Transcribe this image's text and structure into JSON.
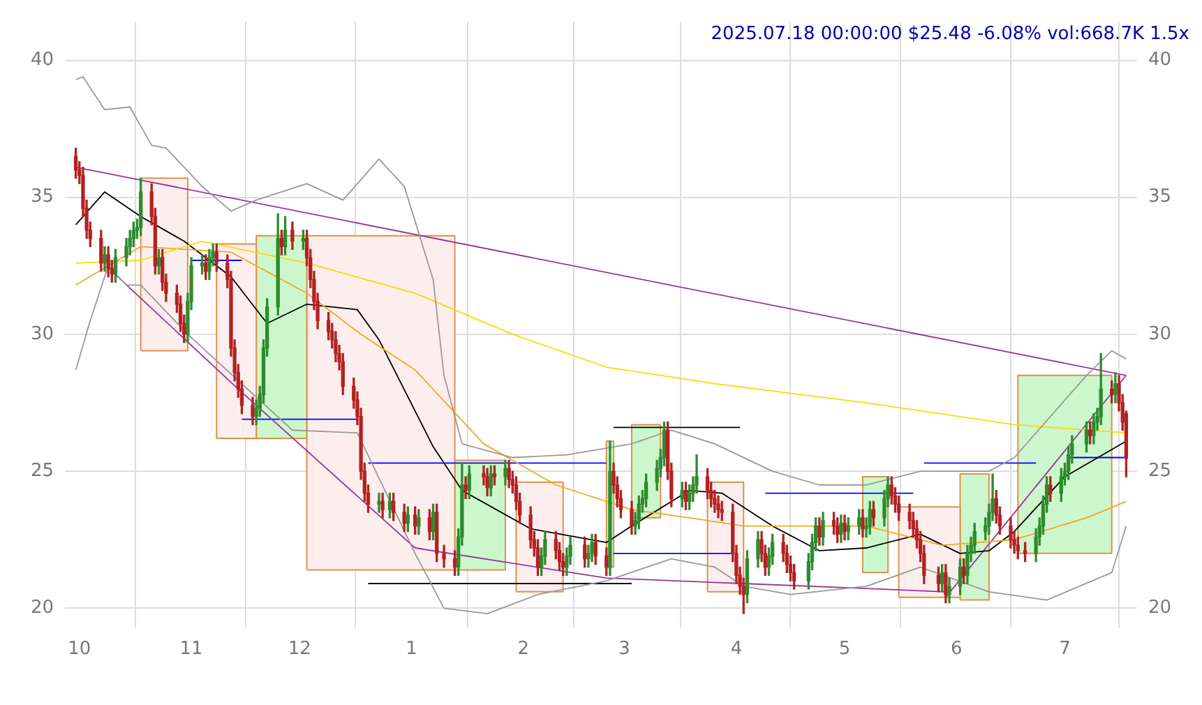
{
  "chart_data": {
    "type": "candlestick",
    "title": "2025.07.18 00:00:00 $25.48 -6.08% vol:668.7K 1.5x",
    "xlim": [
      "2024-09-27",
      "2025-07-21"
    ],
    "xticks": [
      {
        "value": "2024-10-01",
        "label": "10"
      },
      {
        "value": "2024-11-01",
        "label": "11"
      },
      {
        "value": "2024-12-01",
        "label": "12"
      },
      {
        "value": "2025-01-01",
        "label": "1"
      },
      {
        "value": "2025-02-01",
        "label": "2"
      },
      {
        "value": "2025-03-01",
        "label": "3"
      },
      {
        "value": "2025-04-01",
        "label": "4"
      },
      {
        "value": "2025-05-01",
        "label": "5"
      },
      {
        "value": "2025-06-01",
        "label": "6"
      },
      {
        "value": "2025-07-01",
        "label": "7"
      }
    ],
    "ylim": [
      19.3,
      41.4
    ],
    "yticks": [
      20,
      25,
      30,
      35,
      40
    ],
    "y2lim": [
      19.3,
      41.4
    ],
    "y2ticks": [
      20,
      25,
      30,
      35,
      40
    ],
    "grid": true,
    "legend": false,
    "marker": "none",
    "line_style": "solid",
    "series": [
      {
        "type": "area",
        "color": "#fdeeee",
        "x": [
          "2024-10-18",
          "2024-10-18",
          "2024-10-31",
          "2024-10-31",
          "2024-10-18"
        ],
        "values": [
          29.4,
          35.7,
          35.7,
          29.4,
          29.4
        ]
      },
      {
        "type": "area",
        "color": "#fdeeee",
        "x": [
          "2024-11-08",
          "2024-11-08",
          "2024-11-19",
          "2024-11-19",
          "2024-11-08"
        ],
        "values": [
          26.2,
          33.3,
          33.3,
          26.2,
          26.2
        ]
      },
      {
        "type": "area",
        "color": "#ccf7cc",
        "x": [
          "2024-11-19",
          "2024-11-19",
          "2024-12-03",
          "2024-12-03",
          "2024-11-19"
        ],
        "values": [
          26.2,
          33.6,
          33.6,
          26.2,
          26.2
        ]
      },
      {
        "type": "area",
        "color": "#fdeeee",
        "x": [
          "2024-12-03",
          "2024-12-03",
          "2025-01-13",
          "2025-01-13",
          "2024-12-03"
        ],
        "values": [
          21.4,
          33.6,
          33.6,
          21.4,
          21.4
        ]
      },
      {
        "type": "area",
        "color": "#ccf7cc",
        "x": [
          "2025-01-13",
          "2025-01-13",
          "2025-01-27",
          "2025-01-27",
          "2025-01-13"
        ],
        "values": [
          21.4,
          25.4,
          25.4,
          21.4,
          21.4
        ]
      },
      {
        "type": "area",
        "color": "#fdeeee",
        "x": [
          "2025-01-30",
          "2025-01-30",
          "2025-02-12",
          "2025-02-12",
          "2025-01-30"
        ],
        "values": [
          20.6,
          24.6,
          24.6,
          20.6,
          20.6
        ]
      },
      {
        "type": "area",
        "color": "#ccf7cc",
        "x": [
          "2025-02-24",
          "2025-02-24",
          "2025-02-26",
          "2025-02-26",
          "2025-02-24"
        ],
        "values": [
          21.5,
          26.1,
          26.1,
          21.5,
          21.5
        ]
      },
      {
        "type": "area",
        "color": "#ccf7cc",
        "x": [
          "2025-03-03",
          "2025-03-03",
          "2025-03-11",
          "2025-03-11",
          "2025-03-03"
        ],
        "values": [
          23.3,
          26.7,
          26.7,
          23.3,
          23.3
        ]
      },
      {
        "type": "area",
        "color": "#fdeeee",
        "x": [
          "2025-03-24",
          "2025-03-24",
          "2025-04-03",
          "2025-04-03",
          "2025-03-24"
        ],
        "values": [
          20.6,
          24.6,
          24.6,
          20.6,
          20.6
        ]
      },
      {
        "type": "area",
        "color": "#ccf7cc",
        "x": [
          "2025-05-06",
          "2025-05-06",
          "2025-05-13",
          "2025-05-13",
          "2025-05-06"
        ],
        "values": [
          21.3,
          24.8,
          24.8,
          21.3,
          21.3
        ]
      },
      {
        "type": "area",
        "color": "#fdeeee",
        "x": [
          "2025-05-16",
          "2025-05-16",
          "2025-06-02",
          "2025-06-02",
          "2025-05-16"
        ],
        "values": [
          20.4,
          23.7,
          23.7,
          20.4,
          20.4
        ]
      },
      {
        "type": "area",
        "color": "#ccf7cc",
        "x": [
          "2025-06-02",
          "2025-06-02",
          "2025-06-10",
          "2025-06-10",
          "2025-06-02"
        ],
        "values": [
          20.3,
          24.9,
          24.9,
          20.3,
          20.3
        ]
      },
      {
        "type": "area",
        "color": "#ccf7cc",
        "x": [
          "2025-06-18",
          "2025-06-18",
          "2025-07-14",
          "2025-07-14",
          "2025-06-18"
        ],
        "values": [
          22.0,
          28.5,
          28.5,
          22.0,
          22.0
        ]
      },
      {
        "type": "line",
        "color": "#999999",
        "x": [
          "2024-09-30",
          "2024-10-02",
          "2024-10-08",
          "2024-10-15",
          "2024-10-21",
          "2024-10-25",
          "2024-11-04",
          "2024-11-12",
          "2024-11-19",
          "2024-12-03",
          "2024-12-13",
          "2024-12-23",
          "2024-12-30",
          "2025-01-07",
          "2025-01-10",
          "2025-01-15",
          "2025-01-29",
          "2025-02-13",
          "2025-03-03",
          "2025-03-14",
          "2025-03-26",
          "2025-04-11",
          "2025-04-24",
          "2025-05-07",
          "2025-05-22",
          "2025-06-10",
          "2025-06-17",
          "2025-07-07",
          "2025-07-14",
          "2025-07-18"
        ],
        "values": [
          39.3,
          39.4,
          38.2,
          38.3,
          36.9,
          36.8,
          35.4,
          34.5,
          34.9,
          35.5,
          34.9,
          36.4,
          35.4,
          32,
          28.5,
          26,
          25.5,
          25.6,
          26,
          26.5,
          26,
          25,
          24.5,
          24.5,
          25,
          25,
          25.5,
          28.5,
          29.4,
          29.1
        ]
      },
      {
        "type": "line",
        "color": "#999999",
        "x": [
          "2024-09-30",
          "2024-10-04",
          "2024-10-09",
          "2024-10-14",
          "2024-10-18",
          "2024-10-31",
          "2024-11-29",
          "2024-12-17",
          "2025-01-02",
          "2025-01-10",
          "2025-01-22",
          "2025-02-05",
          "2025-02-24",
          "2025-03-14",
          "2025-03-26",
          "2025-04-03",
          "2025-04-16",
          "2025-05-07",
          "2025-05-22",
          "2025-06-10",
          "2025-06-26",
          "2025-07-14",
          "2025-07-18"
        ],
        "values": [
          28.7,
          30.5,
          32.5,
          31.8,
          31.8,
          30,
          26.5,
          26.4,
          22,
          20.0,
          19.8,
          20.5,
          21,
          21.8,
          21.5,
          20.8,
          20.5,
          20.8,
          21.5,
          20.6,
          20.3,
          21.3,
          23.0
        ]
      },
      {
        "type": "line",
        "color": "#ffd700",
        "x": [
          "2024-09-30",
          "2024-10-18",
          "2024-11-04",
          "2024-12-03",
          "2025-01-02",
          "2025-01-29",
          "2025-02-24",
          "2025-03-26",
          "2025-05-07",
          "2025-06-17",
          "2025-07-18"
        ],
        "values": [
          32.6,
          32.7,
          33.4,
          32.6,
          31.5,
          30,
          28.8,
          28.2,
          27.5,
          26.7,
          26.4
        ]
      },
      {
        "type": "line",
        "color": "#f5a623",
        "x": [
          "2024-09-30",
          "2024-10-18",
          "2024-11-12",
          "2024-12-03",
          "2024-12-18",
          "2025-01-02",
          "2025-01-21",
          "2025-02-10",
          "2025-03-03",
          "2025-03-19",
          "2025-04-03",
          "2025-04-22",
          "2025-05-07",
          "2025-05-28",
          "2025-06-17",
          "2025-07-07",
          "2025-07-18"
        ],
        "values": [
          31.8,
          33.2,
          33.0,
          31.5,
          30,
          28.7,
          26,
          24.5,
          23.6,
          23.3,
          23.0,
          23.0,
          23.0,
          22.3,
          22.5,
          23.3,
          23.9
        ]
      },
      {
        "type": "line",
        "color": "#000000",
        "x": [
          "2024-09-30",
          "2024-10-08",
          "2024-10-18",
          "2024-10-30",
          "2024-11-12",
          "2024-11-22",
          "2024-12-03",
          "2024-12-17",
          "2024-12-23",
          "2025-01-07",
          "2025-01-15",
          "2025-02-03",
          "2025-02-24",
          "2025-03-03",
          "2025-03-19",
          "2025-03-28",
          "2025-04-11",
          "2025-04-24",
          "2025-05-07",
          "2025-05-22",
          "2025-06-02",
          "2025-06-10",
          "2025-06-17",
          "2025-07-01",
          "2025-07-18"
        ],
        "values": [
          34.0,
          35.2,
          34.3,
          33.4,
          32.1,
          30.4,
          31.1,
          30.9,
          29.8,
          25.9,
          24.3,
          22.9,
          22.4,
          23.0,
          24.3,
          24.2,
          23.0,
          22.1,
          22.2,
          22.7,
          22.0,
          22.1,
          22.8,
          24.8,
          26.1
        ]
      },
      {
        "type": "line",
        "color": "#993399",
        "x": [
          "2024-09-30",
          "2025-07-18"
        ],
        "values": [
          36.1,
          28.5
        ]
      },
      {
        "type": "line",
        "color": "#993399",
        "x": [
          "2024-10-10",
          "2024-11-14",
          "2025-01-02",
          "2025-02-24",
          "2025-04-03",
          "2025-05-29"
        ],
        "values": [
          32.3,
          28.0,
          22.2,
          21.1,
          20.9,
          20.6
        ]
      },
      {
        "type": "line",
        "color": "#993399",
        "x": [
          "2025-05-29",
          "2025-07-18"
        ],
        "values": [
          20.4,
          28.5
        ]
      },
      {
        "type": "line",
        "color": "#0000ff",
        "x": [
          "2024-11-01",
          "2024-11-15"
        ],
        "values": [
          32.7,
          32.7
        ]
      },
      {
        "type": "line",
        "color": "#0000ff",
        "x": [
          "2024-11-15",
          "2024-12-17"
        ],
        "values": [
          26.9,
          26.9
        ]
      },
      {
        "type": "line",
        "color": "#0000ff",
        "x": [
          "2024-12-20",
          "2025-02-24"
        ],
        "values": [
          25.3,
          25.3
        ]
      },
      {
        "type": "line",
        "color": "#000000",
        "x": [
          "2024-12-20",
          "2025-03-03"
        ],
        "values": [
          20.9,
          20.9
        ]
      },
      {
        "type": "line",
        "color": "#0000ff",
        "x": [
          "2025-02-26",
          "2025-03-31"
        ],
        "values": [
          22.0,
          22.0
        ]
      },
      {
        "type": "line",
        "color": "#000000",
        "x": [
          "2025-02-26",
          "2025-04-02"
        ],
        "values": [
          26.6,
          26.6
        ]
      },
      {
        "type": "line",
        "color": "#0000ff",
        "x": [
          "2025-04-09",
          "2025-05-20"
        ],
        "values": [
          24.2,
          24.2
        ]
      },
      {
        "type": "line",
        "color": "#0000ff",
        "x": [
          "2025-05-23",
          "2025-06-23"
        ],
        "values": [
          25.3,
          25.3
        ]
      },
      {
        "type": "line",
        "color": "#0000ff",
        "x": [
          "2025-07-02",
          "2025-07-18"
        ],
        "values": [
          25.5,
          25.5
        ]
      },
      {
        "color": "#b22222",
        "x": [
          "2024-09-30",
          "2024-10-01",
          "2024-10-02",
          "2024-10-03",
          "2024-10-04",
          "2024-10-07",
          "2024-10-09",
          "2024-10-10",
          "2024-10-21",
          "2024-10-22",
          "2024-10-24",
          "2024-10-25",
          "2024-10-28",
          "2024-10-29",
          "2024-10-30",
          "2024-11-05",
          "2024-11-08",
          "2024-11-11",
          "2024-11-12",
          "2024-11-13",
          "2024-11-14",
          "2024-11-15",
          "2024-11-18",
          "2024-11-26",
          "2024-11-29",
          "2024-12-03",
          "2024-12-04",
          "2024-12-05",
          "2024-12-06",
          "2024-12-09",
          "2024-12-10",
          "2024-12-11",
          "2024-12-12",
          "2024-12-13",
          "2024-12-16",
          "2024-12-17",
          "2024-12-18",
          "2024-12-19",
          "2024-12-20",
          "2024-12-24",
          "2024-12-27",
          "2024-12-30",
          "2025-01-02",
          "2025-01-06",
          "2025-01-08",
          "2025-01-10",
          "2025-01-13",
          "2025-01-16",
          "2025-01-21",
          "2025-01-22",
          "2025-01-24",
          "2025-01-28",
          "2025-01-29",
          "2025-01-30",
          "2025-01-31",
          "2025-02-03",
          "2025-02-04",
          "2025-02-05",
          "2025-02-10",
          "2025-02-11",
          "2025-02-12",
          "2025-02-18",
          "2025-02-21",
          "2025-02-24",
          "2025-02-26",
          "2025-02-27",
          "2025-02-28",
          "2025-03-03",
          "2025-03-13",
          "2025-03-14",
          "2025-03-18",
          "2025-03-24",
          "2025-03-25",
          "2025-03-26",
          "2025-03-27",
          "2025-03-28",
          "2025-03-31",
          "2025-04-01",
          "2025-04-02",
          "2025-04-03",
          "2025-04-08",
          "2025-04-09",
          "2025-04-14",
          "2025-04-15",
          "2025-04-16",
          "2025-04-17",
          "2025-04-24",
          "2025-04-28",
          "2025-04-29",
          "2025-05-01",
          "2025-05-06",
          "2025-05-09",
          "2025-05-14",
          "2025-05-15",
          "2025-05-16",
          "2025-05-19",
          "2025-05-20",
          "2025-05-21",
          "2025-05-22",
          "2025-05-23",
          "2025-05-27",
          "2025-05-29",
          "2025-06-03",
          "2025-06-12",
          "2025-06-13",
          "2025-06-16",
          "2025-06-17",
          "2025-06-18",
          "2025-06-20",
          "2025-06-27",
          "2025-07-08",
          "2025-07-14",
          "2025-07-16",
          "2025-07-17",
          "2025-07-18"
        ],
        "ohlc": [
          [
            36.5,
            36.8,
            35.7,
            36.0
          ],
          [
            36.0,
            36.3,
            35.5,
            35.8
          ],
          [
            35.8,
            36.1,
            34.3,
            34.6
          ],
          [
            34.6,
            34.9,
            33.5,
            33.8
          ],
          [
            33.8,
            34.1,
            33.2,
            33.5
          ],
          [
            33.5,
            33.8,
            32.3,
            32.6
          ],
          [
            32.9,
            33.2,
            32.1,
            32.4
          ],
          [
            32.4,
            32.7,
            31.9,
            32.2
          ],
          [
            35.2,
            35.5,
            34.0,
            34.3
          ],
          [
            34.3,
            34.6,
            32.2,
            32.5
          ],
          [
            32.8,
            33.1,
            31.6,
            31.9
          ],
          [
            31.9,
            32.2,
            31.2,
            31.5
          ],
          [
            31.5,
            31.8,
            30.8,
            31.1
          ],
          [
            31.1,
            31.4,
            30.1,
            30.4
          ],
          [
            30.4,
            30.7,
            29.7,
            30.0
          ],
          [
            32.6,
            32.9,
            32.0,
            32.3
          ],
          [
            33.0,
            33.3,
            32.3,
            32.6
          ],
          [
            32.6,
            32.9,
            31.7,
            32.0
          ],
          [
            32.0,
            32.3,
            29.2,
            29.5
          ],
          [
            29.5,
            29.8,
            28.3,
            28.6
          ],
          [
            28.6,
            28.9,
            27.7,
            28.0
          ],
          [
            28.0,
            28.3,
            27.1,
            27.4
          ],
          [
            27.4,
            27.7,
            26.7,
            27.0
          ],
          [
            33.5,
            33.8,
            32.9,
            33.2
          ],
          [
            33.8,
            34.1,
            33.1,
            33.4
          ],
          [
            33.5,
            33.8,
            32.5,
            32.8
          ],
          [
            32.8,
            33.1,
            31.7,
            32.0
          ],
          [
            32.0,
            32.3,
            30.9,
            31.2
          ],
          [
            31.2,
            31.5,
            30.2,
            30.5
          ],
          [
            30.5,
            30.8,
            29.8,
            30.1
          ],
          [
            30.1,
            30.4,
            29.5,
            29.8
          ],
          [
            29.8,
            30.1,
            29.0,
            29.3
          ],
          [
            29.3,
            29.6,
            28.7,
            29.0
          ],
          [
            29.0,
            29.3,
            27.8,
            28.1
          ],
          [
            28.1,
            28.4,
            27.3,
            27.6
          ],
          [
            27.6,
            27.9,
            26.7,
            27.0
          ],
          [
            27.0,
            27.3,
            24.7,
            25.0
          ],
          [
            25.0,
            25.3,
            23.9,
            24.2
          ],
          [
            24.2,
            24.5,
            23.5,
            23.8
          ],
          [
            23.9,
            24.2,
            23.3,
            23.6
          ],
          [
            23.9,
            24.2,
            23.2,
            23.5
          ],
          [
            23.5,
            23.8,
            22.8,
            23.1
          ],
          [
            23.4,
            23.7,
            22.7,
            23.0
          ],
          [
            23.3,
            23.6,
            22.5,
            22.8
          ],
          [
            23.5,
            23.8,
            21.7,
            22.0
          ],
          [
            22.0,
            22.3,
            21.5,
            21.8
          ],
          [
            21.8,
            22.1,
            21.2,
            21.5
          ],
          [
            24.5,
            24.8,
            24.0,
            24.3
          ],
          [
            24.9,
            25.2,
            24.5,
            24.8
          ],
          [
            24.8,
            25.1,
            24.1,
            24.4
          ],
          [
            24.9,
            25.2,
            24.5,
            24.8
          ],
          [
            25.1,
            25.4,
            24.4,
            24.7
          ],
          [
            24.7,
            25.0,
            24.2,
            24.5
          ],
          [
            24.5,
            24.8,
            23.6,
            23.9
          ],
          [
            23.9,
            24.2,
            23.1,
            23.4
          ],
          [
            23.4,
            23.7,
            22.2,
            22.5
          ],
          [
            22.5,
            22.8,
            21.9,
            22.2
          ],
          [
            22.2,
            22.5,
            21.2,
            21.5
          ],
          [
            22.5,
            22.8,
            21.8,
            22.1
          ],
          [
            22.1,
            22.4,
            21.4,
            21.7
          ],
          [
            21.7,
            22.0,
            21.2,
            21.5
          ],
          [
            22.3,
            22.6,
            21.5,
            21.8
          ],
          [
            22.4,
            22.7,
            21.6,
            21.9
          ],
          [
            21.9,
            22.2,
            21.2,
            21.5
          ],
          [
            25.0,
            25.3,
            24.2,
            24.5
          ],
          [
            24.5,
            24.8,
            23.7,
            24.0
          ],
          [
            24.0,
            24.3,
            23.3,
            23.6
          ],
          [
            23.6,
            23.9,
            22.7,
            23.0
          ],
          [
            26.5,
            26.8,
            24.7,
            25.0
          ],
          [
            25.0,
            25.3,
            23.7,
            24.0
          ],
          [
            24.3,
            24.6,
            23.6,
            23.9
          ],
          [
            24.8,
            25.1,
            24.0,
            24.3
          ],
          [
            24.3,
            24.6,
            23.7,
            24.0
          ],
          [
            24.0,
            24.3,
            23.5,
            23.8
          ],
          [
            23.8,
            24.1,
            23.3,
            23.6
          ],
          [
            23.6,
            23.9,
            23.2,
            23.5
          ],
          [
            23.5,
            23.8,
            21.7,
            22.0
          ],
          [
            22.0,
            22.3,
            20.9,
            21.2
          ],
          [
            21.2,
            21.5,
            20.5,
            20.8
          ],
          [
            20.8,
            21.1,
            19.8,
            20.5
          ],
          [
            22.5,
            22.8,
            21.7,
            22.0
          ],
          [
            22.0,
            22.3,
            21.2,
            21.5
          ],
          [
            22.4,
            22.7,
            21.7,
            22.0
          ],
          [
            22.0,
            22.3,
            21.3,
            21.6
          ],
          [
            21.6,
            21.9,
            21.0,
            21.3
          ],
          [
            21.3,
            21.6,
            20.7,
            21.0
          ],
          [
            23.0,
            23.3,
            22.3,
            22.6
          ],
          [
            23.2,
            23.5,
            22.7,
            23.0
          ],
          [
            23.0,
            23.3,
            22.4,
            22.7
          ],
          [
            23.1,
            23.4,
            22.5,
            22.8
          ],
          [
            23.3,
            23.6,
            22.6,
            22.9
          ],
          [
            23.6,
            23.9,
            23.0,
            23.3
          ],
          [
            24.5,
            24.8,
            23.8,
            24.1
          ],
          [
            24.1,
            24.4,
            23.5,
            23.8
          ],
          [
            23.8,
            24.1,
            23.2,
            23.5
          ],
          [
            23.5,
            23.8,
            22.9,
            23.2
          ],
          [
            23.2,
            23.5,
            22.6,
            22.9
          ],
          [
            22.9,
            23.2,
            22.2,
            22.5
          ],
          [
            22.5,
            22.8,
            21.7,
            22.0
          ],
          [
            22.0,
            22.3,
            20.9,
            21.2
          ],
          [
            21.2,
            21.5,
            20.6,
            20.9
          ],
          [
            21.3,
            21.6,
            20.2,
            20.5
          ],
          [
            21.5,
            21.8,
            20.9,
            21.2
          ],
          [
            24.0,
            24.3,
            23.1,
            23.4
          ],
          [
            23.4,
            23.7,
            22.7,
            23.0
          ],
          [
            23.0,
            23.3,
            22.2,
            22.5
          ],
          [
            22.5,
            22.8,
            22.0,
            22.3
          ],
          [
            22.3,
            22.6,
            21.8,
            22.1
          ],
          [
            22.1,
            22.4,
            21.7,
            22.0
          ],
          [
            24.5,
            24.8,
            23.9,
            24.2
          ],
          [
            26.5,
            26.8,
            26.0,
            26.3
          ],
          [
            28.0,
            28.3,
            27.5,
            27.8
          ],
          [
            28.2,
            28.5,
            27.2,
            27.5
          ],
          [
            27.5,
            27.8,
            26.5,
            26.8
          ],
          [
            27.1,
            27.2,
            24.8,
            25.48
          ]
        ]
      },
      {
        "color": "#2e8b2e",
        "x": [
          "2024-10-08",
          "2024-10-11",
          "2024-10-14",
          "2024-10-15",
          "2024-10-16",
          "2024-10-17",
          "2024-10-18",
          "2024-10-23",
          "2024-10-31",
          "2024-11-01",
          "2024-11-04",
          "2024-11-06",
          "2024-11-07",
          "2024-11-19",
          "2024-11-20",
          "2024-11-21",
          "2024-11-22",
          "2024-11-25",
          "2024-11-27",
          "2024-12-02",
          "2024-12-23",
          "2024-12-26",
          "2024-12-31",
          "2025-01-03",
          "2025-01-07",
          "2025-01-14",
          "2025-01-15",
          "2025-01-17",
          "2025-01-23",
          "2025-01-27",
          "2025-02-06",
          "2025-02-07",
          "2025-02-13",
          "2025-02-14",
          "2025-02-19",
          "2025-02-20",
          "2025-02-25",
          "2025-03-04",
          "2025-03-05",
          "2025-03-06",
          "2025-03-07",
          "2025-03-10",
          "2025-03-11",
          "2025-03-12",
          "2025-03-17",
          "2025-03-19",
          "2025-03-20",
          "2025-03-21",
          "2025-04-04",
          "2025-04-07",
          "2025-04-10",
          "2025-04-11",
          "2025-04-21",
          "2025-04-22",
          "2025-04-23",
          "2025-04-25",
          "2025-04-30",
          "2025-05-02",
          "2025-05-05",
          "2025-05-07",
          "2025-05-08",
          "2025-05-12",
          "2025-05-13",
          "2025-05-28",
          "2025-05-30",
          "2025-06-02",
          "2025-06-04",
          "2025-06-05",
          "2025-06-06",
          "2025-06-09",
          "2025-06-10",
          "2025-06-11",
          "2025-06-23",
          "2025-06-24",
          "2025-06-25",
          "2025-06-26",
          "2025-06-30",
          "2025-07-01",
          "2025-07-02",
          "2025-07-03",
          "2025-07-07",
          "2025-07-09",
          "2025-07-10",
          "2025-07-11",
          "2025-07-15"
        ],
        "ohlc": [
          [
            32.6,
            33.2,
            32.3,
            32.9
          ],
          [
            32.2,
            33.1,
            31.9,
            32.8
          ],
          [
            32.8,
            33.5,
            32.5,
            33.2
          ],
          [
            33.2,
            33.8,
            32.9,
            33.5
          ],
          [
            33.5,
            34.1,
            33.2,
            33.8
          ],
          [
            33.8,
            34.2,
            33.5,
            33.9
          ],
          [
            33.9,
            35.7,
            33.6,
            35.2
          ],
          [
            32.5,
            33.1,
            32.2,
            32.8
          ],
          [
            30.0,
            31.5,
            29.7,
            31.2
          ],
          [
            31.2,
            32.8,
            30.9,
            32.5
          ],
          [
            32.5,
            32.9,
            32.2,
            32.6
          ],
          [
            32.3,
            33.1,
            32.0,
            32.8
          ],
          [
            32.8,
            33.3,
            32.5,
            33.0
          ],
          [
            27.0,
            27.6,
            26.7,
            27.3
          ],
          [
            27.3,
            28.1,
            27.0,
            27.8
          ],
          [
            27.8,
            29.8,
            27.5,
            29.5
          ],
          [
            29.5,
            31.3,
            29.2,
            31.0
          ],
          [
            31.0,
            34.4,
            30.7,
            33.5
          ],
          [
            33.2,
            34.3,
            32.9,
            33.8
          ],
          [
            33.4,
            33.8,
            33.1,
            33.5
          ],
          [
            23.8,
            24.2,
            23.5,
            23.9
          ],
          [
            23.6,
            24.2,
            23.3,
            23.9
          ],
          [
            23.1,
            23.7,
            22.8,
            23.4
          ],
          [
            23.0,
            23.6,
            22.7,
            23.3
          ],
          [
            22.8,
            23.8,
            22.5,
            23.5
          ],
          [
            21.5,
            22.9,
            21.2,
            22.6
          ],
          [
            22.6,
            25.3,
            22.3,
            24.5
          ],
          [
            24.3,
            25.2,
            24.0,
            24.9
          ],
          [
            24.4,
            25.2,
            24.1,
            24.9
          ],
          [
            24.8,
            25.4,
            24.5,
            25.1
          ],
          [
            21.5,
            22.2,
            21.2,
            21.9
          ],
          [
            21.9,
            22.8,
            21.6,
            22.5
          ],
          [
            21.5,
            22.2,
            21.2,
            21.9
          ],
          [
            21.9,
            22.6,
            21.6,
            22.3
          ],
          [
            21.8,
            22.3,
            21.5,
            22.0
          ],
          [
            22.0,
            22.7,
            21.7,
            22.4
          ],
          [
            21.5,
            26.1,
            21.2,
            25.0
          ],
          [
            23.0,
            23.5,
            22.7,
            23.2
          ],
          [
            23.2,
            24.1,
            22.9,
            23.8
          ],
          [
            23.8,
            24.3,
            23.5,
            24.0
          ],
          [
            24.0,
            24.9,
            23.7,
            24.6
          ],
          [
            24.6,
            25.4,
            24.3,
            25.1
          ],
          [
            25.1,
            25.8,
            24.8,
            25.5
          ],
          [
            25.5,
            26.8,
            25.2,
            26.5
          ],
          [
            24.0,
            24.6,
            23.7,
            24.3
          ],
          [
            23.9,
            24.5,
            23.6,
            24.2
          ],
          [
            24.2,
            24.8,
            23.9,
            24.5
          ],
          [
            24.5,
            25.6,
            24.2,
            24.8
          ],
          [
            20.5,
            22.1,
            20.2,
            21.8
          ],
          [
            21.8,
            22.8,
            21.5,
            22.5
          ],
          [
            21.5,
            22.2,
            21.2,
            21.9
          ],
          [
            21.9,
            22.7,
            21.6,
            22.4
          ],
          [
            21.0,
            22.0,
            20.7,
            21.7
          ],
          [
            21.7,
            22.7,
            21.4,
            22.4
          ],
          [
            22.4,
            23.3,
            22.1,
            23.0
          ],
          [
            22.6,
            23.5,
            22.3,
            23.2
          ],
          [
            22.7,
            23.4,
            22.4,
            23.1
          ],
          [
            22.8,
            23.3,
            22.5,
            23.0
          ],
          [
            23.0,
            23.6,
            22.7,
            23.3
          ],
          [
            22.9,
            23.3,
            22.6,
            23.0
          ],
          [
            23.0,
            23.9,
            22.7,
            23.6
          ],
          [
            23.3,
            24.3,
            23.0,
            24.0
          ],
          [
            24.0,
            24.8,
            23.7,
            24.5
          ],
          [
            20.9,
            21.6,
            20.6,
            21.3
          ],
          [
            20.5,
            21.1,
            20.2,
            20.8
          ],
          [
            20.8,
            21.8,
            20.5,
            21.5
          ],
          [
            21.2,
            22.3,
            20.9,
            22.0
          ],
          [
            22.0,
            22.6,
            21.7,
            22.3
          ],
          [
            22.3,
            23.1,
            22.0,
            22.8
          ],
          [
            22.8,
            23.3,
            22.5,
            23.0
          ],
          [
            23.0,
            23.8,
            22.7,
            23.5
          ],
          [
            23.5,
            24.9,
            23.2,
            24.0
          ],
          [
            22.0,
            22.9,
            21.7,
            22.6
          ],
          [
            22.6,
            23.3,
            22.3,
            23.0
          ],
          [
            23.0,
            24.1,
            22.7,
            23.8
          ],
          [
            23.8,
            24.8,
            23.5,
            24.5
          ],
          [
            24.2,
            25.1,
            23.9,
            24.8
          ],
          [
            24.8,
            25.3,
            24.5,
            25.0
          ],
          [
            25.0,
            25.9,
            24.7,
            25.6
          ],
          [
            25.6,
            26.3,
            25.3,
            26.0
          ],
          [
            26.0,
            26.8,
            25.7,
            26.5
          ],
          [
            26.3,
            27.1,
            26.0,
            26.8
          ],
          [
            26.8,
            27.3,
            26.5,
            27.0
          ],
          [
            27.0,
            29.3,
            26.7,
            28.0
          ],
          [
            27.8,
            28.6,
            27.5,
            28.2
          ]
        ]
      }
    ]
  }
}
